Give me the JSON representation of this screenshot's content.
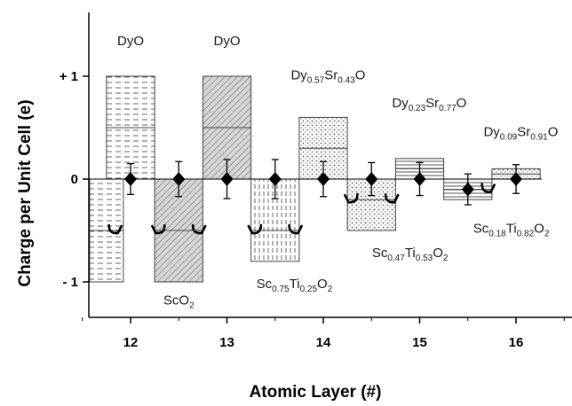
{
  "chart_data": {
    "type": "bar",
    "xlabel": "Atomic Layer (#)",
    "ylabel": "Charge per Unit Cell (e)",
    "xlim": [
      11.5,
      16.5
    ],
    "ylim": [
      -1.35,
      1.55
    ],
    "x_ticks": [
      {
        "value": 12,
        "label": "12"
      },
      {
        "value": 13,
        "label": "13"
      },
      {
        "value": 14,
        "label": "14"
      },
      {
        "value": 15,
        "label": "15"
      },
      {
        "value": 16,
        "label": "16"
      }
    ],
    "y_ticks": [
      {
        "value": 1,
        "label": "+ 1"
      },
      {
        "value": 0,
        "label": "0"
      },
      {
        "value": -1,
        "label": "- 1"
      }
    ],
    "bars": [
      {
        "x": 11.75,
        "width": 0.35,
        "y": -1.0,
        "split": -0.5,
        "pattern": "dash-h"
      },
      {
        "x": 12.0,
        "width": 0.5,
        "y": 1.0,
        "split": 0.5,
        "pattern": "dash-h"
      },
      {
        "x": 12.5,
        "width": 0.5,
        "y": -1.0,
        "split": -0.5,
        "pattern": "diag"
      },
      {
        "x": 13.0,
        "width": 0.5,
        "y": 1.0,
        "split": 0.5,
        "pattern": "diag"
      },
      {
        "x": 13.5,
        "width": 0.5,
        "y": -0.8,
        "split": -0.5,
        "pattern": "dash-v"
      },
      {
        "x": 14.0,
        "width": 0.5,
        "y": 0.6,
        "split": 0.3,
        "pattern": "dots"
      },
      {
        "x": 14.5,
        "width": 0.5,
        "y": -0.5,
        "split": -0.2,
        "pattern": "dots"
      },
      {
        "x": 15.0,
        "width": 0.5,
        "y": 0.2,
        "split": 0.1,
        "pattern": "hlines"
      },
      {
        "x": 15.5,
        "width": 0.5,
        "y": -0.2,
        "split": -0.1,
        "pattern": "hlines"
      },
      {
        "x": 16.0,
        "width": 0.5,
        "y": 0.1,
        "split": 0.05,
        "pattern": "dots"
      }
    ],
    "points": [
      {
        "x": 12.0,
        "y": 0.0,
        "err": 0.15
      },
      {
        "x": 12.5,
        "y": 0.0,
        "err": 0.17
      },
      {
        "x": 13.0,
        "y": 0.0,
        "err": 0.19
      },
      {
        "x": 13.5,
        "y": 0.0,
        "err": 0.19
      },
      {
        "x": 14.0,
        "y": 0.0,
        "err": 0.17
      },
      {
        "x": 14.5,
        "y": 0.0,
        "err": 0.16
      },
      {
        "x": 15.0,
        "y": 0.0,
        "err": 0.16
      },
      {
        "x": 15.5,
        "y": -0.1,
        "err": 0.15
      },
      {
        "x": 16.0,
        "y": 0.0,
        "err": 0.14
      }
    ],
    "hooks": [
      {
        "x": 11.85,
        "y": -0.5,
        "dir": "right"
      },
      {
        "x": 12.28,
        "y": -0.5,
        "dir": "left"
      },
      {
        "x": 12.72,
        "y": -0.5,
        "dir": "right"
      },
      {
        "x": 13.28,
        "y": -0.5,
        "dir": "left"
      },
      {
        "x": 13.72,
        "y": -0.5,
        "dir": "right"
      },
      {
        "x": 14.28,
        "y": -0.2,
        "dir": "left"
      },
      {
        "x": 14.72,
        "y": -0.2,
        "dir": "right"
      },
      {
        "x": 15.72,
        "y": -0.1,
        "dir": "right"
      }
    ],
    "annotations": [
      {
        "name": "label-dyo-1",
        "x": 12.0,
        "y": 1.3,
        "parts": [
          {
            "t": "DyO"
          }
        ]
      },
      {
        "name": "label-dyo-2",
        "x": 13.0,
        "y": 1.3,
        "parts": [
          {
            "t": "DyO"
          }
        ]
      },
      {
        "name": "label-sco2",
        "x": 12.5,
        "y": -1.22,
        "parts": [
          {
            "t": "ScO"
          },
          {
            "t": "2",
            "sub": true
          }
        ]
      },
      {
        "name": "label-sc075",
        "x": 13.7,
        "y": -1.06,
        "parts": [
          {
            "t": "Sc"
          },
          {
            "t": "0.75",
            "sub": true
          },
          {
            "t": "Ti"
          },
          {
            "t": "0.25",
            "sub": true
          },
          {
            "t": "O"
          },
          {
            "t": "2",
            "sub": true
          }
        ]
      },
      {
        "name": "label-dy057",
        "x": 14.05,
        "y": 0.97,
        "parts": [
          {
            "t": "Dy"
          },
          {
            "t": "0.57",
            "sub": true
          },
          {
            "t": "Sr"
          },
          {
            "t": "0.43",
            "sub": true
          },
          {
            "t": "O"
          }
        ]
      },
      {
        "name": "label-dy023",
        "x": 15.1,
        "y": 0.7,
        "parts": [
          {
            "t": "Dy"
          },
          {
            "t": "0.23",
            "sub": true
          },
          {
            "t": "Sr"
          },
          {
            "t": "0.77",
            "sub": true
          },
          {
            "t": "O"
          }
        ]
      },
      {
        "name": "label-dy009",
        "x": 16.05,
        "y": 0.42,
        "parts": [
          {
            "t": "Dy"
          },
          {
            "t": "0.09",
            "sub": true
          },
          {
            "t": "Sr"
          },
          {
            "t": "0.91",
            "sub": true
          },
          {
            "t": "O"
          }
        ]
      },
      {
        "name": "label-sc047",
        "x": 14.9,
        "y": -0.76,
        "parts": [
          {
            "t": "Sc"
          },
          {
            "t": "0.47",
            "sub": true
          },
          {
            "t": "Ti"
          },
          {
            "t": "0.53",
            "sub": true
          },
          {
            "t": "O"
          },
          {
            "t": "2",
            "sub": true
          }
        ]
      },
      {
        "name": "label-sc018",
        "x": 15.95,
        "y": -0.52,
        "parts": [
          {
            "t": "Sc"
          },
          {
            "t": "0.18",
            "sub": true
          },
          {
            "t": "Ti"
          },
          {
            "t": "0.82",
            "sub": true
          },
          {
            "t": "O"
          },
          {
            "t": "2",
            "sub": true
          }
        ]
      }
    ],
    "grid": false,
    "legend": "none",
    "colors": {
      "marker": "#000000",
      "bar_stroke": "#444444",
      "axis": "#000000"
    }
  }
}
